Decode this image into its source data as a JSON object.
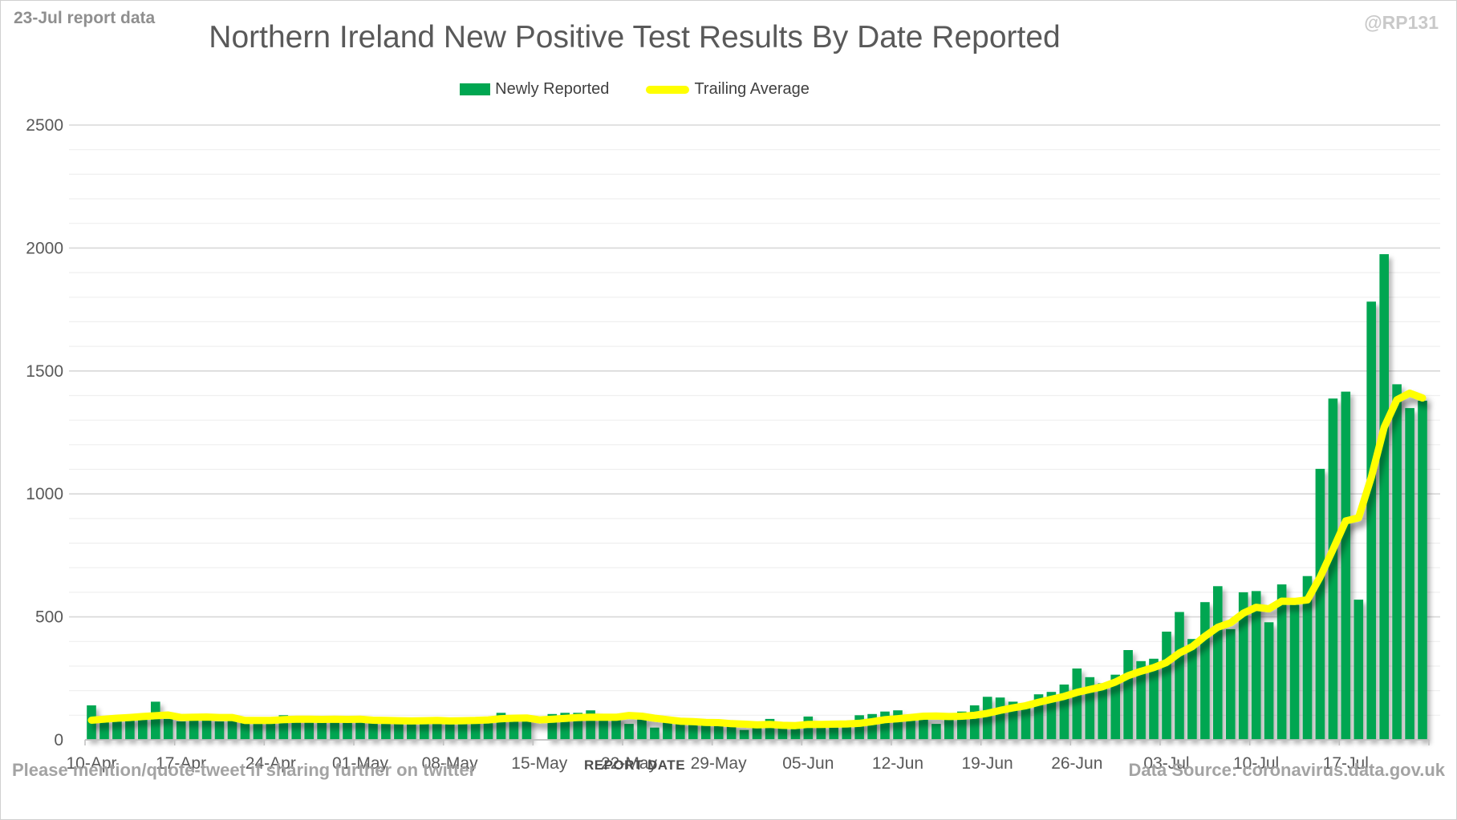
{
  "header": {
    "report_note": "23-Jul report data",
    "title": "Northern Ireland New Positive Test Results By Date Reported",
    "watermark": "@RP131"
  },
  "legend": {
    "bar_label": "Newly Reported",
    "line_label": "Trailing Average"
  },
  "footer": {
    "left_note": "Please mention/quote-tweet if sharing further on twitter",
    "axis_title": "REPORT DATE",
    "data_source": "Data Source: coronavirus.data.gov.uk"
  },
  "colors": {
    "bar": "#00A651",
    "line": "#FFFF00",
    "grid_minor": "#efefef",
    "grid_major": "#d8d8d8",
    "axis": "#bfbfbf",
    "tick_text": "#595959"
  },
  "chart_data": {
    "type": "bar",
    "title": "Northern Ireland New Positive Test Results By Date Reported",
    "xlabel": "REPORT DATE",
    "ylabel": "",
    "ylim": [
      0,
      2500
    ],
    "grid": "horizontal minor every 100, major every 500",
    "legend_position": "top-center",
    "y_ticks": [
      0,
      500,
      1000,
      1500,
      2000,
      2500
    ],
    "x_tick_labels": [
      "10-Apr",
      "17-Apr",
      "24-Apr",
      "01-May",
      "08-May",
      "15-May",
      "22-May",
      "29-May",
      "05-Jun",
      "12-Jun",
      "19-Jun",
      "26-Jun",
      "03-Jul",
      "10-Jul",
      "17-Jul"
    ],
    "categories": [
      "10-Apr",
      "11-Apr",
      "12-Apr",
      "13-Apr",
      "14-Apr",
      "15-Apr",
      "16-Apr",
      "17-Apr",
      "18-Apr",
      "19-Apr",
      "20-Apr",
      "21-Apr",
      "22-Apr",
      "23-Apr",
      "24-Apr",
      "25-Apr",
      "26-Apr",
      "27-Apr",
      "28-Apr",
      "29-Apr",
      "30-Apr",
      "01-May",
      "02-May",
      "03-May",
      "04-May",
      "05-May",
      "06-May",
      "07-May",
      "08-May",
      "09-May",
      "10-May",
      "11-May",
      "12-May",
      "13-May",
      "14-May",
      "15-May",
      "16-May",
      "17-May",
      "18-May",
      "19-May",
      "20-May",
      "21-May",
      "22-May",
      "23-May",
      "24-May",
      "25-May",
      "26-May",
      "27-May",
      "28-May",
      "29-May",
      "30-May",
      "31-May",
      "01-Jun",
      "02-Jun",
      "03-Jun",
      "04-Jun",
      "05-Jun",
      "06-Jun",
      "07-Jun",
      "08-Jun",
      "09-Jun",
      "10-Jun",
      "11-Jun",
      "12-Jun",
      "13-Jun",
      "14-Jun",
      "15-Jun",
      "16-Jun",
      "17-Jun",
      "18-Jun",
      "19-Jun",
      "20-Jun",
      "21-Jun",
      "22-Jun",
      "23-Jun",
      "24-Jun",
      "25-Jun",
      "26-Jun",
      "27-Jun",
      "28-Jun",
      "29-Jun",
      "30-Jun",
      "01-Jul",
      "02-Jul",
      "03-Jul",
      "04-Jul",
      "05-Jul",
      "06-Jul",
      "07-Jul",
      "08-Jul",
      "09-Jul",
      "10-Jul",
      "11-Jul",
      "12-Jul",
      "13-Jul",
      "14-Jul",
      "15-Jul",
      "16-Jul",
      "17-Jul",
      "18-Jul",
      "19-Jul",
      "20-Jul",
      "21-Jul",
      "22-Jul",
      "23-Jul"
    ],
    "series": [
      {
        "name": "Newly Reported",
        "type": "bar",
        "color": "#00A651",
        "values": [
          140,
          75,
          75,
          85,
          90,
          155,
          85,
          75,
          80,
          80,
          75,
          85,
          70,
          85,
          80,
          100,
          90,
          75,
          80,
          75,
          80,
          85,
          75,
          80,
          70,
          75,
          80,
          85,
          75,
          80,
          90,
          85,
          110,
          90,
          95,
          0,
          105,
          110,
          110,
          120,
          90,
          95,
          65,
          85,
          50,
          70,
          75,
          80,
          70,
          60,
          55,
          40,
          50,
          85,
          55,
          60,
          95,
          55,
          50,
          55,
          100,
          105,
          115,
          120,
          90,
          85,
          65,
          85,
          115,
          140,
          175,
          172,
          155,
          130,
          185,
          195,
          225,
          290,
          255,
          230,
          265,
          365,
          320,
          330,
          440,
          520,
          410,
          560,
          625,
          450,
          600,
          605,
          478,
          632,
          549,
          666,
          1102,
          1388,
          1416,
          570,
          1782,
          1975,
          1446,
          1349,
          1379
        ]
      },
      {
        "name": "Trailing Average",
        "type": "line",
        "color": "#FFFF00",
        "window": 7,
        "values": [
          80,
          84,
          88,
          91,
          95,
          98,
          101,
          91,
          92,
          93,
          91,
          91,
          79,
          79,
          79,
          82,
          84,
          84,
          83,
          84,
          83,
          84,
          80,
          79,
          78,
          77,
          78,
          79,
          77,
          78,
          79,
          81,
          86,
          88,
          89,
          81,
          84,
          87,
          91,
          92,
          92,
          92,
          99,
          96,
          88,
          82,
          76,
          74,
          71,
          70,
          66,
          64,
          61,
          63,
          59,
          58,
          63,
          63,
          64,
          65,
          67,
          74,
          82,
          86,
          91,
          96,
          97,
          95,
          96,
          100,
          108,
          120,
          130,
          139,
          153,
          165,
          177,
          193,
          205,
          216,
          235,
          261,
          279,
          294,
          315,
          353,
          379,
          421,
          458,
          476,
          515,
          539,
          533,
          564,
          563,
          569,
          662,
          774,
          890,
          903,
          1068,
          1271,
          1383,
          1410,
          1390
        ]
      }
    ]
  }
}
